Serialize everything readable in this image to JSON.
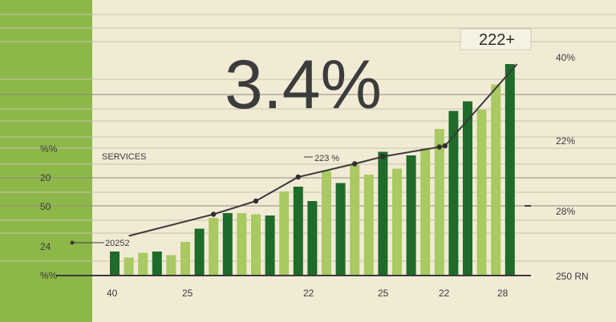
{
  "chart_data": {
    "type": "bar",
    "headline": "3.4%",
    "callout": "222+",
    "section_label": "SERVICES",
    "annotations": [
      "223 %",
      "20252"
    ],
    "left_tick_labels": [
      "%%",
      "20",
      "50",
      "24",
      "%%"
    ],
    "right_tick_labels": [
      "40%",
      "22%",
      "28%",
      "250 RN"
    ],
    "x_tick_labels": [
      "40",
      "25",
      "22",
      "25",
      "22",
      "28"
    ],
    "values": [
      20,
      15,
      19,
      20,
      17,
      28,
      39,
      48,
      52,
      52,
      51,
      50,
      70,
      74,
      62,
      87,
      77,
      92,
      84,
      103,
      89,
      100,
      106,
      122,
      137,
      145,
      138,
      159,
      176
    ],
    "shades": [
      "dark",
      "light",
      "light",
      "dark",
      "light",
      "light",
      "dark",
      "light",
      "dark",
      "light",
      "light",
      "dark",
      "light",
      "dark",
      "dark",
      "light",
      "dark",
      "light",
      "light",
      "dark",
      "light",
      "dark",
      "light",
      "light",
      "dark",
      "dark",
      "light",
      "light",
      "dark"
    ],
    "trend": [
      [
        1,
        33
      ],
      [
        7,
        51
      ],
      [
        10,
        62
      ],
      [
        13,
        82
      ],
      [
        17,
        93
      ],
      [
        19,
        99
      ],
      [
        23,
        107
      ],
      [
        23.4,
        108
      ],
      [
        28.5,
        176
      ]
    ],
    "colors": {
      "bar_dark": "#1e6b2a",
      "bar_light": "#a9c962",
      "left_panel": "#8db849",
      "background": "#f1ebd6",
      "ink": "#3a3a3a"
    },
    "ylim": [
      0,
      180
    ]
  }
}
